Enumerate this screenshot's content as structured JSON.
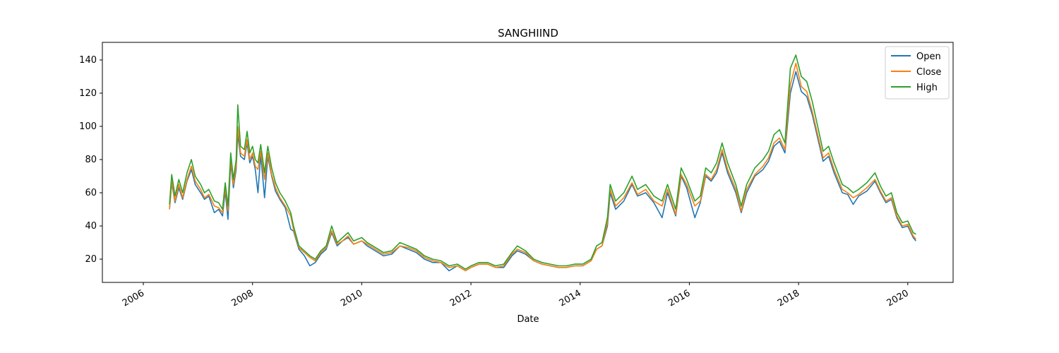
{
  "chart_data": {
    "type": "line",
    "title": "SANGHIIND",
    "xlabel": "Date",
    "x": [
      2006.48,
      2006.52,
      2006.58,
      2006.65,
      2006.72,
      2006.8,
      2006.88,
      2006.95,
      2007.05,
      2007.12,
      2007.2,
      2007.3,
      2007.38,
      2007.45,
      2007.5,
      2007.55,
      2007.6,
      2007.65,
      2007.7,
      2007.73,
      2007.78,
      2007.85,
      2007.9,
      2007.95,
      2008.0,
      2008.05,
      2008.1,
      2008.15,
      2008.22,
      2008.28,
      2008.35,
      2008.42,
      2008.5,
      2008.6,
      2008.7,
      2008.75,
      2008.85,
      2008.95,
      2009.05,
      2009.15,
      2009.25,
      2009.35,
      2009.45,
      2009.55,
      2009.65,
      2009.75,
      2009.85,
      2010.0,
      2010.1,
      2010.25,
      2010.4,
      2010.55,
      2010.7,
      2010.85,
      2011.0,
      2011.15,
      2011.3,
      2011.45,
      2011.6,
      2011.75,
      2011.9,
      2012.0,
      2012.15,
      2012.3,
      2012.45,
      2012.6,
      2012.75,
      2012.85,
      2013.0,
      2013.15,
      2013.3,
      2013.45,
      2013.6,
      2013.75,
      2013.9,
      2014.05,
      2014.2,
      2014.3,
      2014.4,
      2014.5,
      2014.55,
      2014.65,
      2014.8,
      2014.95,
      2015.05,
      2015.2,
      2015.35,
      2015.5,
      2015.6,
      2015.75,
      2015.85,
      2015.95,
      2016.1,
      2016.2,
      2016.3,
      2016.4,
      2016.5,
      2016.6,
      2016.7,
      2016.85,
      2016.95,
      2017.05,
      2017.2,
      2017.35,
      2017.45,
      2017.55,
      2017.65,
      2017.75,
      2017.85,
      2017.95,
      2018.05,
      2018.15,
      2018.25,
      2018.35,
      2018.45,
      2018.55,
      2018.65,
      2018.8,
      2018.9,
      2019.0,
      2019.1,
      2019.25,
      2019.4,
      2019.5,
      2019.6,
      2019.7,
      2019.8,
      2019.9,
      2020.0,
      2020.1,
      2020.15
    ],
    "series": [
      {
        "name": "Open",
        "color": "#1f77b4",
        "values": [
          50,
          66,
          54,
          63,
          56,
          67,
          74,
          65,
          60,
          56,
          58,
          48,
          50,
          46,
          61,
          44,
          78,
          63,
          74,
          95,
          82,
          80,
          90,
          78,
          82,
          74,
          60,
          83,
          57,
          82,
          70,
          61,
          56,
          51,
          38,
          37,
          26,
          22,
          16,
          18,
          23,
          26,
          36,
          28,
          31,
          33,
          29,
          31,
          28,
          25,
          22,
          23,
          28,
          26,
          24,
          20,
          18,
          18,
          13,
          16,
          13,
          15,
          17,
          17,
          15,
          15,
          22,
          25,
          23,
          19,
          17,
          16,
          15,
          15,
          16,
          16,
          19,
          26,
          28,
          40,
          60,
          50,
          55,
          65,
          58,
          60,
          54,
          45,
          60,
          46,
          70,
          63,
          45,
          54,
          70,
          67,
          72,
          84,
          72,
          60,
          48,
          60,
          70,
          74,
          79,
          88,
          91,
          84,
          120,
          133,
          121,
          118,
          107,
          93,
          79,
          82,
          72,
          60,
          59,
          53,
          58,
          61,
          67,
          60,
          54,
          56,
          45,
          39,
          40,
          33,
          31
        ]
      },
      {
        "name": "Close",
        "color": "#ff7f0e",
        "values": [
          50,
          67,
          55,
          65,
          57,
          68,
          76,
          67,
          62,
          57,
          59,
          52,
          51,
          48,
          63,
          49,
          80,
          65,
          76,
          100,
          84,
          82,
          92,
          80,
          84,
          76,
          74,
          85,
          68,
          84,
          71,
          63,
          57,
          52,
          46,
          38,
          27,
          24,
          21,
          19,
          24,
          27,
          37,
          29,
          31,
          34,
          29,
          31,
          29,
          26,
          23,
          24,
          28,
          27,
          25,
          21,
          19,
          18,
          15,
          16,
          13,
          15,
          17,
          17,
          15,
          16,
          23,
          26,
          24,
          19,
          17,
          16,
          15,
          15,
          16,
          16,
          19,
          26,
          28,
          42,
          62,
          52,
          57,
          66,
          59,
          62,
          55,
          52,
          62,
          47,
          71,
          65,
          52,
          55,
          71,
          68,
          74,
          86,
          74,
          62,
          49,
          62,
          71,
          76,
          81,
          90,
          93,
          86,
          125,
          138,
          124,
          121,
          109,
          95,
          81,
          84,
          74,
          62,
          60,
          57,
          59,
          63,
          68,
          61,
          55,
          57,
          46,
          40,
          41,
          34,
          32
        ]
      },
      {
        "name": "High",
        "color": "#2ca02c",
        "values": [
          53,
          71,
          58,
          68,
          60,
          72,
          80,
          70,
          65,
          60,
          62,
          55,
          54,
          50,
          66,
          52,
          84,
          68,
          80,
          113,
          88,
          86,
          97,
          84,
          88,
          80,
          78,
          89,
          72,
          88,
          75,
          66,
          60,
          55,
          48,
          40,
          28,
          25,
          22,
          20,
          25,
          28,
          40,
          30,
          33,
          36,
          31,
          33,
          30,
          27,
          24,
          25,
          30,
          28,
          26,
          22,
          20,
          19,
          16,
          17,
          14,
          16,
          18,
          18,
          16,
          17,
          24,
          28,
          25,
          20,
          18,
          17,
          16,
          16,
          17,
          17,
          20,
          28,
          30,
          45,
          65,
          55,
          60,
          70,
          62,
          65,
          58,
          55,
          65,
          50,
          75,
          68,
          55,
          58,
          75,
          72,
          78,
          90,
          78,
          65,
          52,
          65,
          75,
          80,
          85,
          95,
          98,
          90,
          135,
          143,
          130,
          127,
          115,
          100,
          85,
          88,
          78,
          65,
          63,
          60,
          62,
          66,
          72,
          64,
          58,
          60,
          48,
          42,
          43,
          36,
          35
        ]
      }
    ],
    "xlim": [
      2005.25,
      2020.83
    ],
    "xticks": [
      2006,
      2008,
      2010,
      2012,
      2014,
      2016,
      2018,
      2020
    ],
    "ylim": [
      6,
      150.6
    ],
    "yticks": [
      20,
      40,
      60,
      80,
      100,
      120,
      140
    ],
    "legend": "upper right"
  }
}
